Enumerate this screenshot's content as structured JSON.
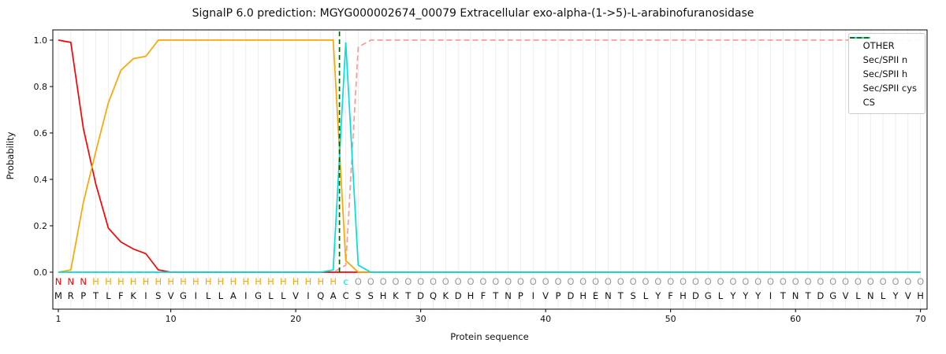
{
  "chart_data": {
    "type": "line",
    "title": "SignalP 6.0 prediction: MGYG000002674_00079 Extracellular exo-alpha-(1->5)-L-arabinofuranosidase",
    "xlabel": "Protein sequence",
    "ylabel": "Probability",
    "x_range": [
      1,
      70
    ],
    "xticks": [
      1,
      10,
      20,
      30,
      40,
      50,
      60,
      70
    ],
    "yticks": [
      0.0,
      0.2,
      0.4,
      0.6,
      0.8,
      1.0
    ],
    "ylim": [
      -0.16,
      1.04
    ],
    "grid": "vertical-per-residue",
    "legend_position": "upper right",
    "series": [
      {
        "name": "OTHER",
        "color": "#ff9999",
        "dash": "dashed",
        "values": [
          0,
          0,
          0,
          0,
          0,
          0,
          0,
          0,
          0,
          0,
          0,
          0,
          0,
          0,
          0,
          0,
          0,
          0,
          0,
          0,
          0,
          0,
          0,
          0.03,
          0.97,
          1,
          1,
          1,
          1,
          1,
          1,
          1,
          1,
          1,
          1,
          1,
          1,
          1,
          1,
          1,
          1,
          1,
          1,
          1,
          1,
          1,
          1,
          1,
          1,
          1,
          1,
          1,
          1,
          1,
          1,
          1,
          1,
          1,
          1,
          1,
          1,
          1,
          1,
          1,
          1,
          1,
          1,
          1,
          1,
          1
        ]
      },
      {
        "name": "Sec/SPII n",
        "color": "#ff0000",
        "dash": "solid",
        "values": [
          1,
          0.99,
          0.62,
          0.38,
          0.19,
          0.13,
          0.1,
          0.08,
          0.01,
          0,
          0,
          0,
          0,
          0,
          0,
          0,
          0,
          0,
          0,
          0,
          0,
          0,
          0,
          0,
          0,
          0,
          0,
          0,
          0,
          0,
          0,
          0,
          0,
          0,
          0,
          0,
          0,
          0,
          0,
          0,
          0,
          0,
          0,
          0,
          0,
          0,
          0,
          0,
          0,
          0,
          0,
          0,
          0,
          0,
          0,
          0,
          0,
          0,
          0,
          0,
          0,
          0,
          0,
          0,
          0,
          0,
          0,
          0,
          0,
          0
        ]
      },
      {
        "name": "Sec/SPII h",
        "color": "#ffa500",
        "dash": "solid",
        "values": [
          0,
          0.01,
          0.3,
          0.52,
          0.73,
          0.87,
          0.92,
          0.93,
          1,
          1,
          1,
          1,
          1,
          1,
          1,
          1,
          1,
          1,
          1,
          1,
          1,
          1,
          1,
          0.05,
          0,
          0,
          0,
          0,
          0,
          0,
          0,
          0,
          0,
          0,
          0,
          0,
          0,
          0,
          0,
          0,
          0,
          0,
          0,
          0,
          0,
          0,
          0,
          0,
          0,
          0,
          0,
          0,
          0,
          0,
          0,
          0,
          0,
          0,
          0,
          0,
          0,
          0,
          0,
          0,
          0,
          0,
          0,
          0,
          0,
          0
        ]
      },
      {
        "name": "Sec/SPII cys",
        "color": "#00e0e0",
        "dash": "solid",
        "values": [
          0,
          0,
          0,
          0,
          0,
          0,
          0,
          0,
          0,
          0,
          0,
          0,
          0,
          0,
          0,
          0,
          0,
          0,
          0,
          0,
          0,
          0,
          0.01,
          0.99,
          0.03,
          0,
          0,
          0,
          0,
          0,
          0,
          0,
          0,
          0,
          0,
          0,
          0,
          0,
          0,
          0,
          0,
          0,
          0,
          0,
          0,
          0,
          0,
          0,
          0,
          0,
          0,
          0,
          0,
          0,
          0,
          0,
          0,
          0,
          0,
          0,
          0,
          0,
          0,
          0,
          0,
          0,
          0,
          0,
          0,
          0
        ]
      }
    ],
    "cs_marker": {
      "name": "CS",
      "color": "#006400",
      "dash": "dashed",
      "x": 23.5
    },
    "sequence": "MRPTLFKISVGILLAIGLLVIQACSSHKTDQKDHFTNPIVPDHENTSLYFHDGLYYYITNTDGVLNLYVH",
    "region_labels": {
      "labels": "NNNHHHHHHHHHHHHHHHHHHHHcOOOOOOOOOOOOOOOOOOOOOOOOOOOOOOOOOOOOOOOOOOOOOO",
      "colors": {
        "N": "#ff0000",
        "H": "#ffa500",
        "c": "#00e0e0",
        "O": "#9b9b9b"
      }
    }
  }
}
